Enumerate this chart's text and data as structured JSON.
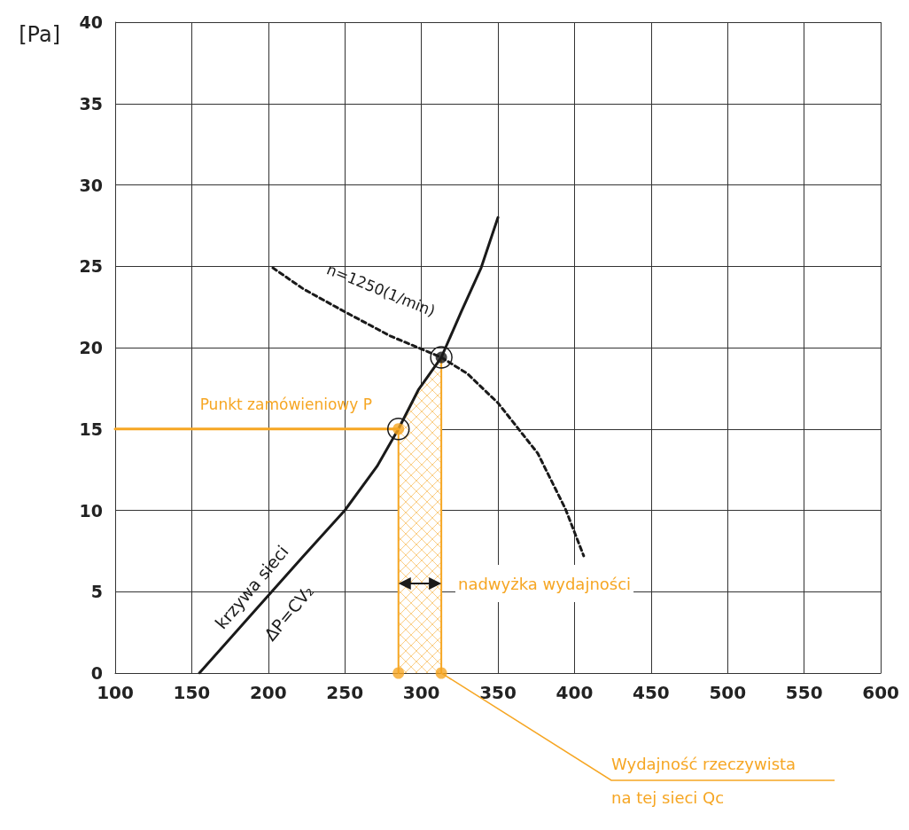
{
  "chart_data": {
    "type": "line",
    "ylabel": "[Pa]",
    "xlim": [
      100,
      600
    ],
    "xticks": [
      100,
      150,
      200,
      250,
      300,
      350,
      400,
      450,
      500,
      550,
      600
    ],
    "ylim": [
      0,
      40
    ],
    "yticks": [
      0,
      5,
      10,
      15,
      20,
      25,
      30,
      35,
      40
    ],
    "grid": true,
    "series": [
      {
        "color": "#1a1a1a",
        "line_style": "solid",
        "marker": "none",
        "x": [
          155,
          190,
          223,
          250,
          271,
          285,
          298,
          313,
          326,
          339,
          350
        ],
        "values": [
          0,
          3.7,
          7.2,
          10,
          12.7,
          15,
          17.4,
          19.4,
          22.2,
          24.9,
          28
        ]
      },
      {
        "color": "#1a1a1a",
        "line_style": "dashed",
        "marker": "none",
        "x": [
          203,
          223,
          250,
          280,
          313,
          330,
          350,
          376,
          394,
          406
        ],
        "values": [
          24.9,
          23.6,
          22.2,
          20.7,
          19.4,
          18.4,
          16.6,
          13.5,
          10.1,
          7.2
        ]
      },
      {
        "type": "line",
        "color": "#f6a623",
        "line_style": "solid",
        "marker": "none",
        "x": [
          100,
          285
        ],
        "values": [
          15,
          15
        ]
      },
      {
        "type": "area",
        "color": "#f6a623",
        "line_style": "solid",
        "marker": "none",
        "x": [
          285,
          285,
          298,
          313,
          313
        ],
        "values": [
          0,
          15,
          17.4,
          19.4,
          0
        ]
      },
      {
        "type": "scatter",
        "marker": "circle",
        "colors": [
          "#f6a623",
          "#f6a623",
          "#f6a623",
          "#1a1a1a"
        ],
        "x": [
          285,
          313,
          285,
          313
        ],
        "values": [
          0,
          0,
          15,
          19.4
        ]
      }
    ],
    "annotations": [
      "Punkt zamówieniowy P",
      "n=1250(1/min)",
      "krzywa sieci",
      "ΔP=CV₂",
      "nadwyżka wydajności",
      "Wydajność rzeczywista\nna tej sieci Qc"
    ]
  }
}
